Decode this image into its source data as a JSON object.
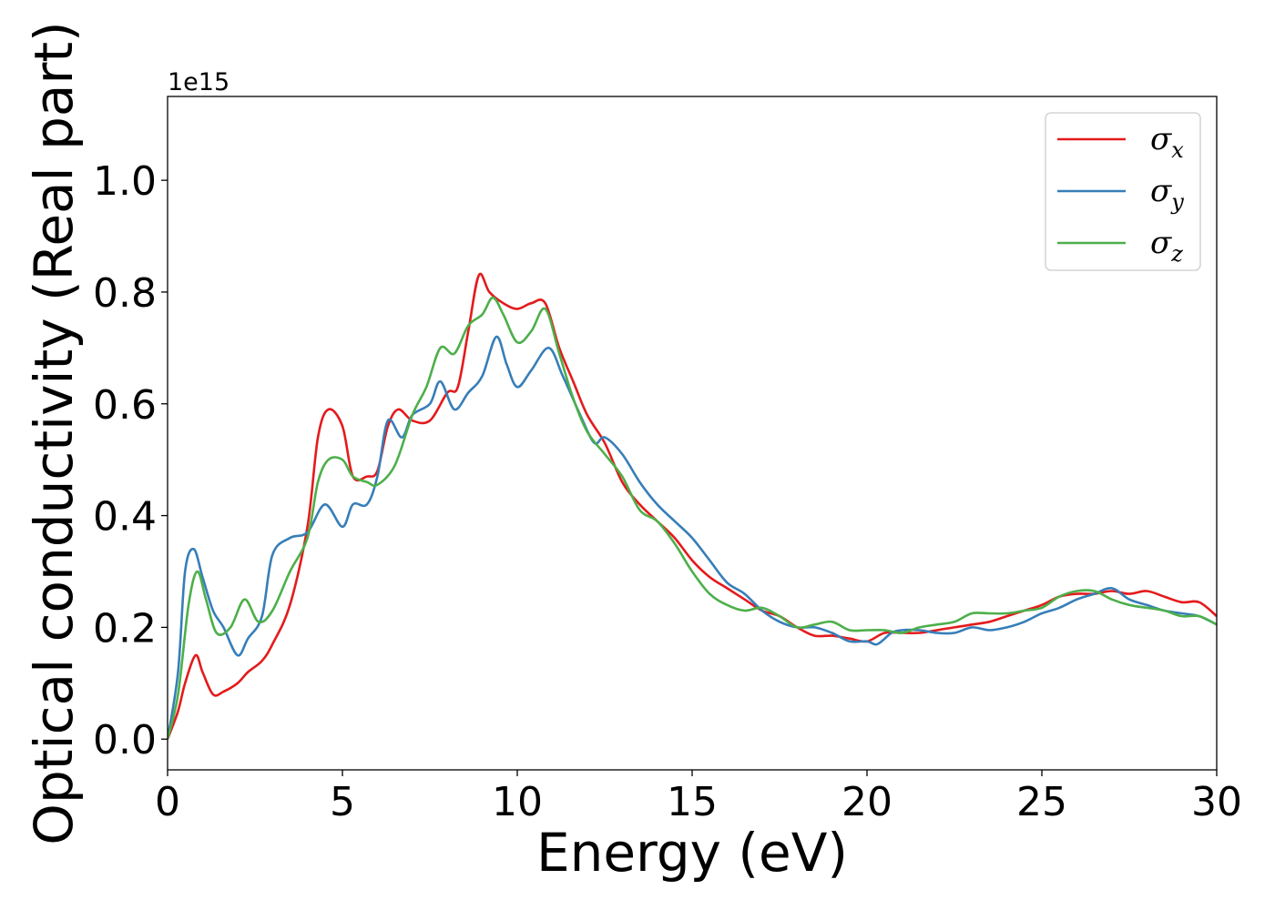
{
  "chart_data": {
    "type": "line",
    "xlabel": "Energy (eV)",
    "ylabel": "Optical conductivity (Real part)",
    "y_offset_label": "1e15",
    "xlim": [
      0,
      30
    ],
    "ylim": [
      -0.055,
      1.15
    ],
    "xticks": [
      "0",
      "5",
      "10",
      "15",
      "20",
      "25",
      "30"
    ],
    "yticks": [
      "0.0",
      "0.2",
      "0.4",
      "0.6",
      "0.8",
      "1.0"
    ],
    "grid": false,
    "legend_position": "top-right",
    "colors": {
      "sigma_x": "#e41a1c",
      "sigma_y": "#377eb8",
      "sigma_z": "#4daf4a"
    },
    "series": [
      {
        "name": "σx",
        "symbol": "σ",
        "subscript": "x",
        "color": "#e41a1c",
        "points": [
          [
            0,
            0
          ],
          [
            0.3,
            0.05
          ],
          [
            0.5,
            0.1
          ],
          [
            0.8,
            0.15
          ],
          [
            1.0,
            0.12
          ],
          [
            1.3,
            0.08
          ],
          [
            1.6,
            0.085
          ],
          [
            2.0,
            0.1
          ],
          [
            2.3,
            0.12
          ],
          [
            2.7,
            0.14
          ],
          [
            3.0,
            0.17
          ],
          [
            3.5,
            0.24
          ],
          [
            4.0,
            0.38
          ],
          [
            4.3,
            0.54
          ],
          [
            4.6,
            0.59
          ],
          [
            5.0,
            0.56
          ],
          [
            5.3,
            0.47
          ],
          [
            5.7,
            0.47
          ],
          [
            6.0,
            0.48
          ],
          [
            6.3,
            0.56
          ],
          [
            6.6,
            0.59
          ],
          [
            7.0,
            0.57
          ],
          [
            7.5,
            0.57
          ],
          [
            8.0,
            0.62
          ],
          [
            8.3,
            0.63
          ],
          [
            8.6,
            0.73
          ],
          [
            8.9,
            0.83
          ],
          [
            9.2,
            0.8
          ],
          [
            9.6,
            0.78
          ],
          [
            10.0,
            0.77
          ],
          [
            10.4,
            0.78
          ],
          [
            10.8,
            0.78
          ],
          [
            11.2,
            0.7
          ],
          [
            11.6,
            0.64
          ],
          [
            12.0,
            0.58
          ],
          [
            12.5,
            0.53
          ],
          [
            13.0,
            0.46
          ],
          [
            13.5,
            0.42
          ],
          [
            14.0,
            0.39
          ],
          [
            14.5,
            0.36
          ],
          [
            15.0,
            0.32
          ],
          [
            15.5,
            0.29
          ],
          [
            16.0,
            0.27
          ],
          [
            16.5,
            0.25
          ],
          [
            17.0,
            0.23
          ],
          [
            17.5,
            0.22
          ],
          [
            18.0,
            0.2
          ],
          [
            18.5,
            0.185
          ],
          [
            19.0,
            0.185
          ],
          [
            19.5,
            0.18
          ],
          [
            20.0,
            0.175
          ],
          [
            20.5,
            0.19
          ],
          [
            21.0,
            0.19
          ],
          [
            21.5,
            0.19
          ],
          [
            22.0,
            0.195
          ],
          [
            22.5,
            0.2
          ],
          [
            23.0,
            0.205
          ],
          [
            23.5,
            0.21
          ],
          [
            24.0,
            0.22
          ],
          [
            24.5,
            0.23
          ],
          [
            25.0,
            0.24
          ],
          [
            25.5,
            0.255
          ],
          [
            26.0,
            0.26
          ],
          [
            26.5,
            0.26
          ],
          [
            27.0,
            0.265
          ],
          [
            27.5,
            0.26
          ],
          [
            28.0,
            0.265
          ],
          [
            28.5,
            0.255
          ],
          [
            29.0,
            0.245
          ],
          [
            29.5,
            0.245
          ],
          [
            30.0,
            0.22
          ]
        ]
      },
      {
        "name": "σy",
        "symbol": "σ",
        "subscript": "y",
        "color": "#377eb8",
        "points": [
          [
            0,
            0
          ],
          [
            0.3,
            0.12
          ],
          [
            0.5,
            0.3
          ],
          [
            0.75,
            0.34
          ],
          [
            1.0,
            0.29
          ],
          [
            1.3,
            0.23
          ],
          [
            1.6,
            0.2
          ],
          [
            2.0,
            0.15
          ],
          [
            2.3,
            0.18
          ],
          [
            2.7,
            0.22
          ],
          [
            3.0,
            0.33
          ],
          [
            3.5,
            0.36
          ],
          [
            4.0,
            0.37
          ],
          [
            4.5,
            0.42
          ],
          [
            5.0,
            0.38
          ],
          [
            5.3,
            0.42
          ],
          [
            5.7,
            0.42
          ],
          [
            6.0,
            0.47
          ],
          [
            6.3,
            0.57
          ],
          [
            6.7,
            0.54
          ],
          [
            7.0,
            0.58
          ],
          [
            7.5,
            0.6
          ],
          [
            7.8,
            0.64
          ],
          [
            8.2,
            0.59
          ],
          [
            8.6,
            0.62
          ],
          [
            9.0,
            0.65
          ],
          [
            9.4,
            0.72
          ],
          [
            9.7,
            0.67
          ],
          [
            10.0,
            0.63
          ],
          [
            10.4,
            0.66
          ],
          [
            10.9,
            0.7
          ],
          [
            11.3,
            0.65
          ],
          [
            11.8,
            0.58
          ],
          [
            12.2,
            0.53
          ],
          [
            12.5,
            0.54
          ],
          [
            13.0,
            0.51
          ],
          [
            13.5,
            0.46
          ],
          [
            14.0,
            0.42
          ],
          [
            14.5,
            0.39
          ],
          [
            15.0,
            0.36
          ],
          [
            15.5,
            0.32
          ],
          [
            16.0,
            0.28
          ],
          [
            16.5,
            0.26
          ],
          [
            17.0,
            0.23
          ],
          [
            17.5,
            0.21
          ],
          [
            18.0,
            0.2
          ],
          [
            18.5,
            0.2
          ],
          [
            19.0,
            0.19
          ],
          [
            19.5,
            0.175
          ],
          [
            20.0,
            0.175
          ],
          [
            20.3,
            0.17
          ],
          [
            20.7,
            0.19
          ],
          [
            21.0,
            0.195
          ],
          [
            21.5,
            0.195
          ],
          [
            22.0,
            0.19
          ],
          [
            22.5,
            0.19
          ],
          [
            23.0,
            0.2
          ],
          [
            23.5,
            0.195
          ],
          [
            24.0,
            0.2
          ],
          [
            24.5,
            0.21
          ],
          [
            25.0,
            0.225
          ],
          [
            25.5,
            0.235
          ],
          [
            26.0,
            0.25
          ],
          [
            26.5,
            0.26
          ],
          [
            27.0,
            0.27
          ],
          [
            27.5,
            0.25
          ],
          [
            28.0,
            0.24
          ],
          [
            28.5,
            0.23
          ],
          [
            29.0,
            0.225
          ],
          [
            29.5,
            0.22
          ],
          [
            30.0,
            0.205
          ]
        ]
      },
      {
        "name": "σz",
        "symbol": "σ",
        "subscript": "z",
        "color": "#4daf4a",
        "points": [
          [
            0,
            0
          ],
          [
            0.3,
            0.08
          ],
          [
            0.6,
            0.24
          ],
          [
            0.85,
            0.3
          ],
          [
            1.1,
            0.25
          ],
          [
            1.4,
            0.19
          ],
          [
            1.8,
            0.2
          ],
          [
            2.2,
            0.25
          ],
          [
            2.6,
            0.21
          ],
          [
            3.0,
            0.23
          ],
          [
            3.5,
            0.3
          ],
          [
            4.0,
            0.36
          ],
          [
            4.3,
            0.46
          ],
          [
            4.6,
            0.5
          ],
          [
            5.0,
            0.5
          ],
          [
            5.3,
            0.47
          ],
          [
            5.7,
            0.46
          ],
          [
            6.0,
            0.455
          ],
          [
            6.5,
            0.49
          ],
          [
            7.0,
            0.58
          ],
          [
            7.4,
            0.63
          ],
          [
            7.8,
            0.7
          ],
          [
            8.2,
            0.69
          ],
          [
            8.6,
            0.74
          ],
          [
            9.0,
            0.76
          ],
          [
            9.3,
            0.79
          ],
          [
            9.6,
            0.76
          ],
          [
            10.0,
            0.71
          ],
          [
            10.4,
            0.73
          ],
          [
            10.8,
            0.77
          ],
          [
            11.2,
            0.69
          ],
          [
            11.6,
            0.61
          ],
          [
            12.0,
            0.55
          ],
          [
            12.5,
            0.51
          ],
          [
            13.0,
            0.47
          ],
          [
            13.5,
            0.41
          ],
          [
            14.0,
            0.39
          ],
          [
            14.5,
            0.35
          ],
          [
            15.0,
            0.3
          ],
          [
            15.5,
            0.26
          ],
          [
            16.0,
            0.24
          ],
          [
            16.5,
            0.23
          ],
          [
            17.0,
            0.235
          ],
          [
            17.5,
            0.22
          ],
          [
            18.0,
            0.2
          ],
          [
            18.5,
            0.205
          ],
          [
            19.0,
            0.21
          ],
          [
            19.5,
            0.195
          ],
          [
            20.0,
            0.195
          ],
          [
            20.5,
            0.195
          ],
          [
            21.0,
            0.19
          ],
          [
            21.5,
            0.2
          ],
          [
            22.0,
            0.205
          ],
          [
            22.5,
            0.21
          ],
          [
            23.0,
            0.225
          ],
          [
            23.5,
            0.225
          ],
          [
            24.0,
            0.225
          ],
          [
            24.5,
            0.23
          ],
          [
            25.0,
            0.235
          ],
          [
            25.5,
            0.255
          ],
          [
            26.0,
            0.265
          ],
          [
            26.5,
            0.265
          ],
          [
            27.0,
            0.25
          ],
          [
            27.5,
            0.24
          ],
          [
            28.0,
            0.235
          ],
          [
            28.5,
            0.23
          ],
          [
            29.0,
            0.22
          ],
          [
            29.5,
            0.22
          ],
          [
            30.0,
            0.205
          ]
        ]
      }
    ]
  }
}
